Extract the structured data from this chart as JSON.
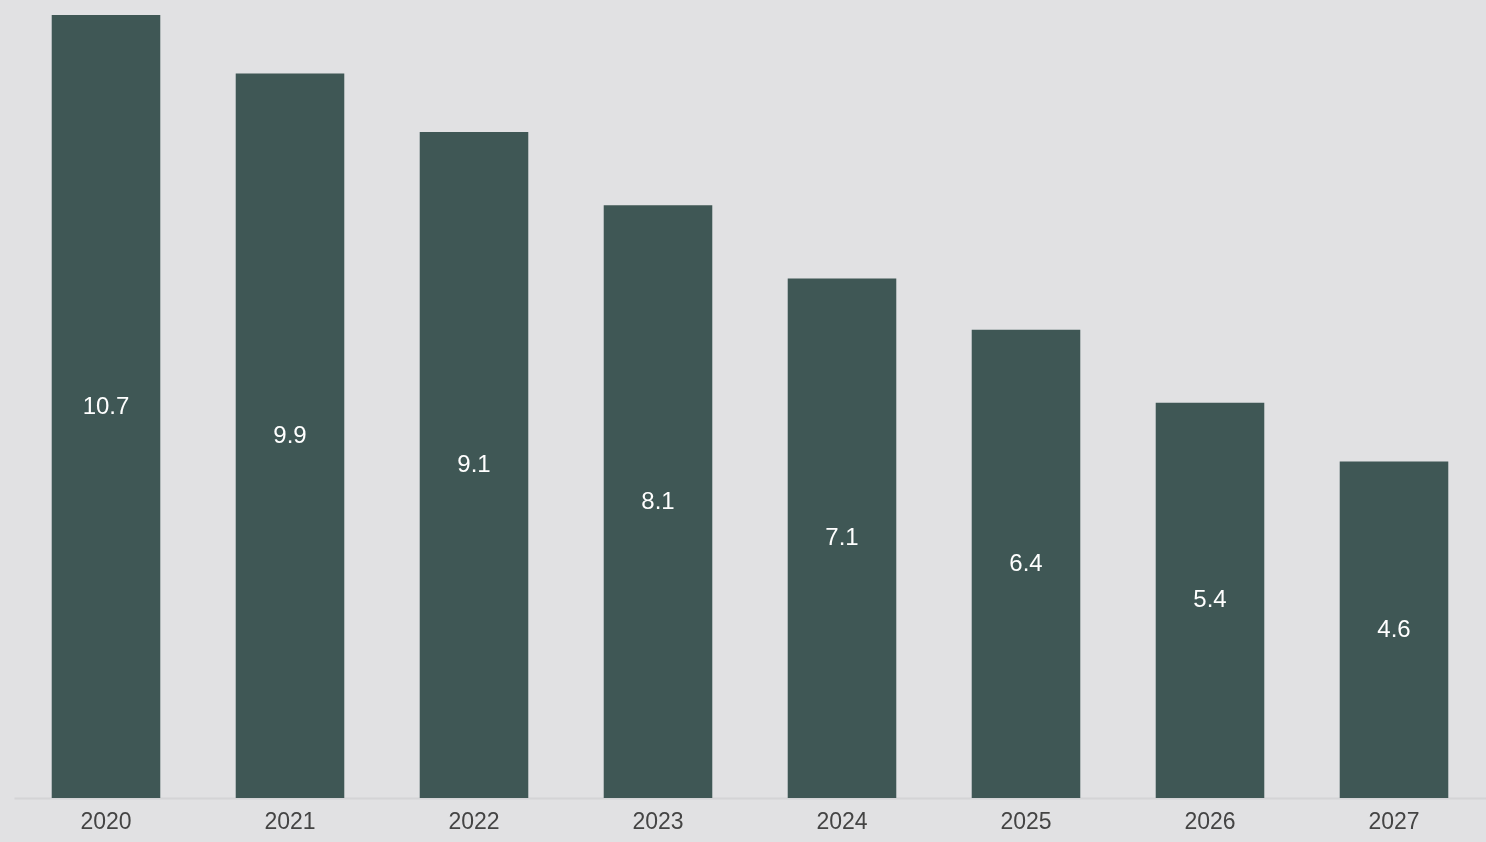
{
  "chart_data": {
    "type": "bar",
    "categories": [
      "2020",
      "2021",
      "2022",
      "2023",
      "2024",
      "2025",
      "2026",
      "2027"
    ],
    "values": [
      10.7,
      9.9,
      9.1,
      8.1,
      7.1,
      6.4,
      5.4,
      4.6
    ],
    "color": "#3f5755",
    "data_labels": true
  }
}
